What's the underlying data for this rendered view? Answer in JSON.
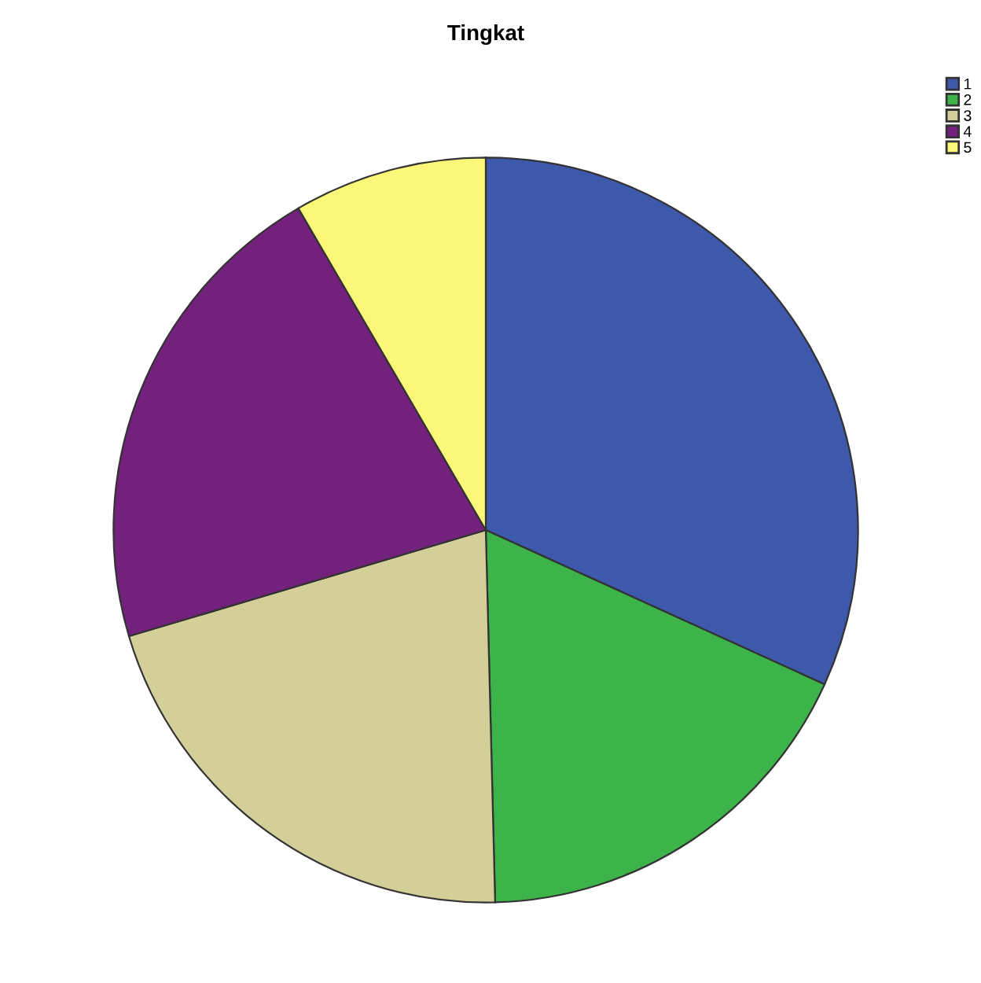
{
  "chart_data": {
    "type": "pie",
    "title": "Tingkat",
    "legend": "top right",
    "categories": [
      "1",
      "2",
      "3",
      "4",
      "5"
    ],
    "values": [
      31.8,
      17.8,
      20.8,
      21.2,
      8.4
    ],
    "colors": [
      "#3e58ac",
      "#3cb44a",
      "#d4cf99",
      "#73217d",
      "#fbf779"
    ]
  }
}
